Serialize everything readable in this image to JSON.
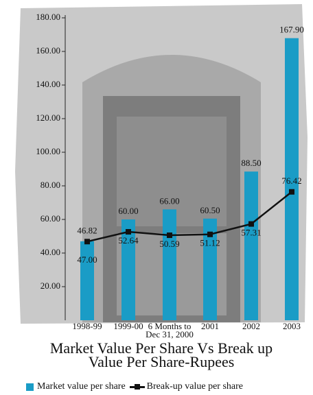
{
  "chart_data": {
    "type": "bar",
    "title": "Market Value Per Share Vs Break up Value Per Share-Rupees",
    "categories": [
      "1998-99",
      "1999-00",
      "6 Months to Dec 31, 2000",
      "2001",
      "2002",
      "2003"
    ],
    "series": [
      {
        "name": "Market value per share",
        "type": "bar",
        "color": "#1a9cc6",
        "values": [
          47.0,
          60.0,
          66.0,
          60.5,
          88.5,
          167.9
        ],
        "value_labels": [
          "47.00",
          "60.00",
          "66.00",
          "60.50",
          "88.50",
          "167.90"
        ]
      },
      {
        "name": "Break-up value per share",
        "type": "line",
        "color": "#111111",
        "values": [
          46.82,
          52.64,
          50.59,
          51.12,
          57.31,
          76.42
        ],
        "value_labels": [
          "46.82",
          "52.64",
          "50.59",
          "51.12",
          "57.31",
          "76.42"
        ]
      }
    ],
    "ylim": [
      0,
      180
    ],
    "yticks": [
      {
        "value": 20,
        "label": "20.00"
      },
      {
        "value": 40,
        "label": "40.00"
      },
      {
        "value": 60,
        "label": "60.00"
      },
      {
        "value": 80,
        "label": "80.00"
      },
      {
        "value": 100,
        "label": "100.00"
      },
      {
        "value": 120,
        "label": "120.00"
      },
      {
        "value": 140,
        "label": "140.00"
      },
      {
        "value": 160,
        "label": "160.00"
      },
      {
        "value": 180,
        "label": "180.00"
      }
    ]
  }
}
